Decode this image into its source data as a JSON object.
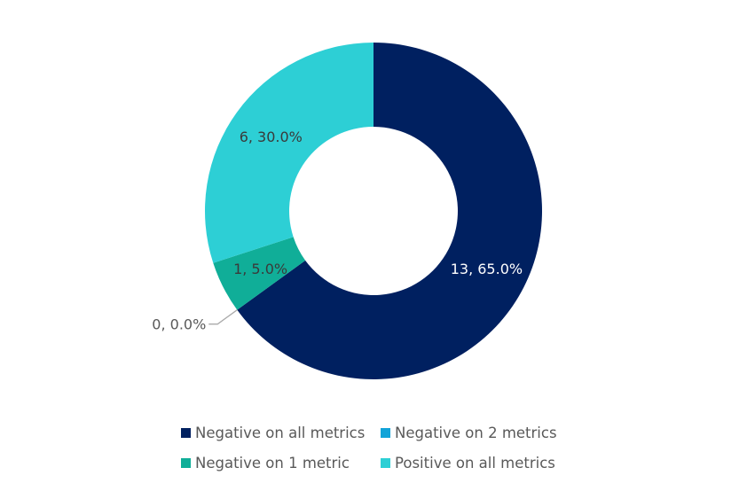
{
  "chart_data": {
    "type": "pie",
    "donut": true,
    "title": "",
    "start": "top",
    "direction": "clockwise",
    "legend_position": "bottom",
    "categories": [
      "Negative on all metrics",
      "Negative on 2 metrics",
      "Negative on 1 metric",
      "Positive on all metrics"
    ],
    "values": [
      13,
      0,
      1,
      6
    ],
    "percents": [
      65.0,
      0.0,
      5.0,
      30.0
    ],
    "data_labels": [
      "13, 65.0%",
      "0, 0.0%",
      "1, 5.0%",
      "6, 30.0%"
    ],
    "colors": [
      "#002060",
      "#12a3d8",
      "#10ae98",
      "#2dcfd5"
    ],
    "label_colors": [
      "#ffffff",
      "#595959",
      "#3a3a3a",
      "#3a3a3a"
    ]
  }
}
